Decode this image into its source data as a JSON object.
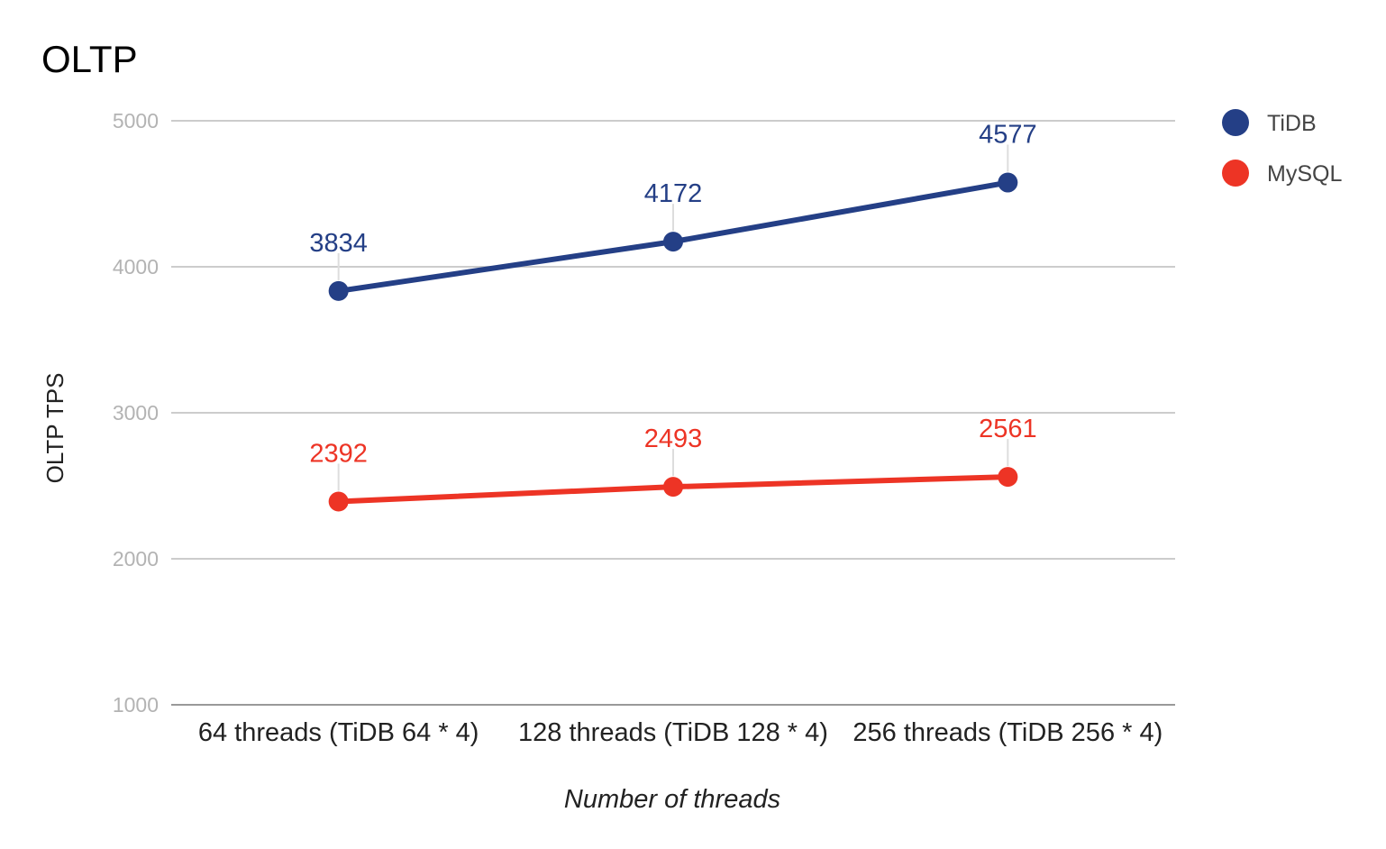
{
  "chart_data": {
    "type": "line",
    "title": "OLTP",
    "xlabel": "Number of threads",
    "ylabel": "OLTP TPS",
    "categories": [
      "64 threads (TiDB 64 * 4)",
      "128 threads (TiDB 128 * 4)",
      "256 threads (TiDB 256 * 4)"
    ],
    "yticks": [
      "1000",
      "2000",
      "3000",
      "4000",
      "5000"
    ],
    "ylim": [
      1000,
      5000
    ],
    "grid": true,
    "legend_position": "right",
    "series": [
      {
        "name": "TiDB",
        "color": "#243f86",
        "values": [
          3834,
          4172,
          4577
        ],
        "labels": [
          "3834",
          "4172",
          "4577"
        ]
      },
      {
        "name": "MySQL",
        "color": "#ed3425",
        "values": [
          2392,
          2493,
          2561
        ],
        "labels": [
          "2392",
          "2493",
          "2561"
        ]
      }
    ]
  }
}
